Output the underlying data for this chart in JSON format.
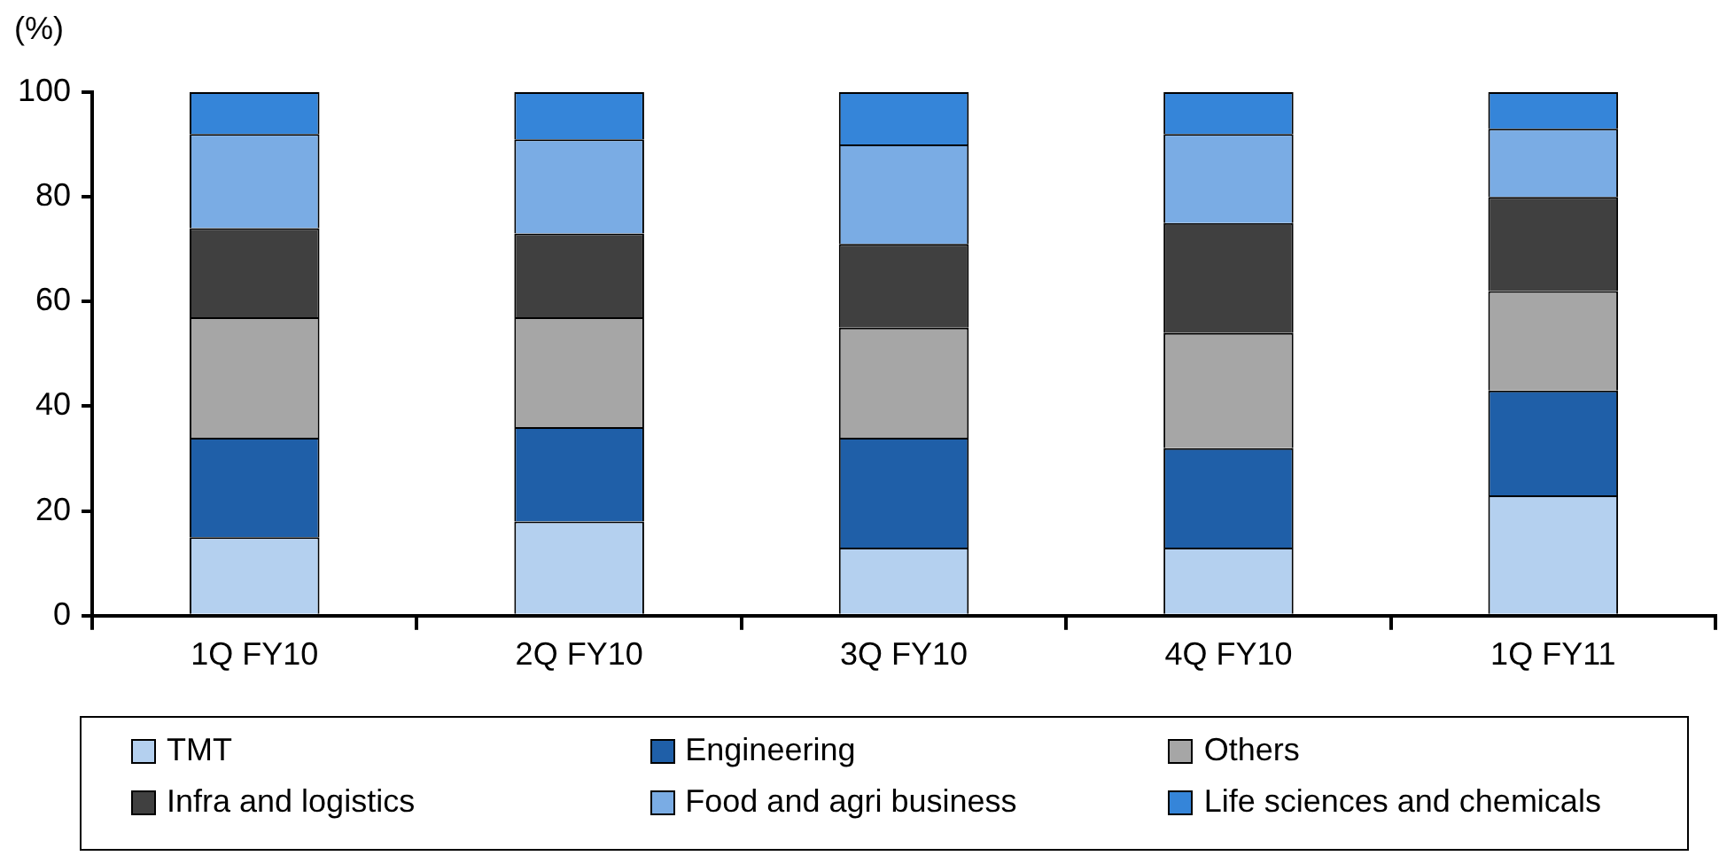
{
  "chart_data": {
    "type": "bar",
    "stacked": true,
    "ylabel": "(%)",
    "categories": [
      "1Q FY10",
      "2Q FY10",
      "3Q FY10",
      "4Q FY10",
      "1Q FY11"
    ],
    "series": [
      {
        "name": "TMT",
        "color": "#b4d0ef",
        "values": [
          15,
          18,
          13,
          13,
          23
        ]
      },
      {
        "name": "Engineering",
        "color": "#1f5fa8",
        "values": [
          19,
          18,
          21,
          19,
          20
        ]
      },
      {
        "name": "Others",
        "color": "#a6a6a6",
        "values": [
          23,
          21,
          21,
          22,
          19
        ]
      },
      {
        "name": "Infra and logistics",
        "color": "#404040",
        "values": [
          17,
          16,
          16,
          21,
          18
        ]
      },
      {
        "name": "Food and agri business",
        "color": "#7aace4",
        "values": [
          18,
          18,
          19,
          17,
          13
        ]
      },
      {
        "name": "Life sciences and chemicals",
        "color": "#3585d9",
        "values": [
          8,
          9,
          10,
          8,
          7
        ]
      }
    ],
    "ylim": [
      0,
      100
    ],
    "yticks": [
      0,
      20,
      40,
      60,
      80,
      100
    ],
    "grid": false,
    "legend": "bottom"
  }
}
